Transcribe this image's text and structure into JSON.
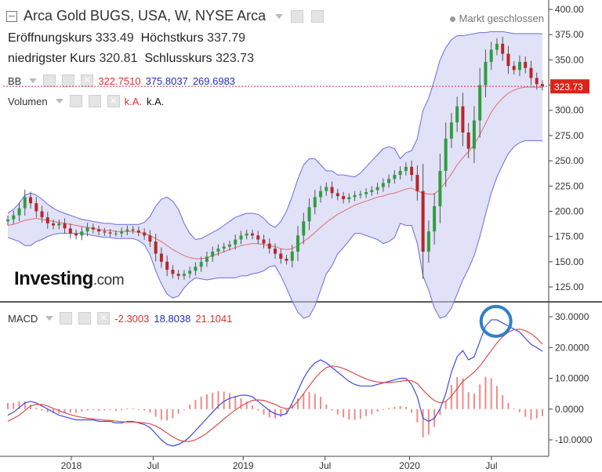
{
  "header": {
    "title": "Arca Gold BUGS, USA, W, NYSE Arca",
    "status": "Markt geschlossen"
  },
  "ohlc": {
    "open_label": "Eröffnungskurs",
    "open": "333.49",
    "high_label": "Höchstkurs",
    "high": "337.79",
    "low_label": "niedrigster Kurs",
    "low": "320.81",
    "close_label": "Schlusskurs",
    "close": "323.73"
  },
  "indicators": {
    "bb": {
      "label": "BB",
      "middle": "322.7510",
      "upper": "375.8037",
      "lower": "269.6983"
    },
    "volume": {
      "label": "Volumen",
      "v1": "k.A.",
      "v2": "k.A."
    },
    "macd": {
      "label": "MACD",
      "hist": "-2.3003",
      "macd": "18.8038",
      "signal": "21.1041"
    }
  },
  "logo": {
    "main": "Investing",
    "suffix": ".com"
  },
  "chart_data": [
    {
      "type": "candlestick",
      "title": "Arca Gold BUGS, USA, W, NYSE Arca",
      "x_ticks": [
        "2018",
        "Jul",
        "2019",
        "Jul",
        "2020",
        "Jul"
      ],
      "y_ticks": [
        "400.00",
        "375.00",
        "350.00",
        "325.00",
        "300.00",
        "275.00",
        "250.00",
        "225.00",
        "200.00",
        "175.00",
        "150.00",
        "125.00"
      ],
      "ylim": [
        110,
        405
      ],
      "last_price": "323.73",
      "closes": [
        192,
        196,
        203,
        214,
        208,
        200,
        194,
        188,
        186,
        188,
        183,
        178,
        176,
        180,
        184,
        182,
        180,
        179,
        178,
        178,
        180,
        182,
        181,
        179,
        176,
        170,
        158,
        150,
        142,
        138,
        136,
        138,
        141,
        145,
        150,
        155,
        160,
        163,
        165,
        167,
        172,
        176,
        178,
        176,
        172,
        168,
        163,
        158,
        153,
        151,
        160,
        176,
        190,
        204,
        214,
        220,
        224,
        218,
        215,
        212,
        214,
        216,
        217,
        219,
        221,
        224,
        228,
        232,
        236,
        240,
        244,
        236,
        220,
        160,
        180,
        205,
        240,
        272,
        288,
        304,
        278,
        262,
        290,
        325,
        348,
        360,
        366,
        356,
        344,
        340,
        348,
        342,
        332,
        326,
        323.73
      ],
      "bb_mid": [
        186,
        187,
        189,
        191,
        192,
        193,
        192,
        191,
        190,
        189,
        188,
        187,
        186,
        185,
        184,
        183,
        182,
        181,
        181,
        180,
        180,
        180,
        180,
        179,
        178,
        176,
        173,
        170,
        166,
        162,
        159,
        156,
        154,
        153,
        153,
        154,
        156,
        158,
        160,
        162,
        164,
        166,
        167,
        168,
        168,
        167,
        166,
        165,
        163,
        162,
        163,
        166,
        170,
        174,
        179,
        184,
        189,
        193,
        197,
        200,
        203,
        206,
        208,
        210,
        212,
        214,
        215,
        217,
        218,
        220,
        222,
        223,
        220,
        218,
        217,
        217,
        222,
        229,
        237,
        246,
        253,
        259,
        266,
        276,
        287,
        298,
        306,
        312,
        317,
        320,
        322,
        323,
        323,
        323,
        322.75
      ],
      "bb_upper": [
        198,
        202,
        208,
        216,
        218,
        216,
        212,
        207,
        203,
        200,
        198,
        196,
        194,
        192,
        191,
        190,
        189,
        188,
        188,
        187,
        187,
        187,
        187,
        187,
        189,
        195,
        205,
        212,
        214,
        210,
        202,
        188,
        178,
        172,
        173,
        176,
        179,
        182,
        186,
        190,
        194,
        196,
        198,
        198,
        197,
        193,
        187,
        184,
        190,
        200,
        215,
        232,
        246,
        252,
        252,
        246,
        240,
        240,
        236,
        236,
        235,
        234,
        238,
        244,
        250,
        256,
        262,
        264,
        262,
        252,
        258,
        260,
        272,
        300,
        312,
        330,
        350,
        362,
        370,
        374,
        374,
        375,
        376,
        377,
        377,
        378,
        378,
        378,
        377,
        376,
        376,
        376,
        376,
        376,
        375.8
      ],
      "bb_lower": [
        174,
        172,
        170,
        166,
        166,
        170,
        172,
        175,
        177,
        178,
        178,
        178,
        178,
        178,
        177,
        176,
        175,
        174,
        174,
        173,
        173,
        173,
        173,
        171,
        167,
        157,
        141,
        128,
        118,
        114,
        116,
        124,
        130,
        134,
        133,
        132,
        133,
        134,
        134,
        134,
        134,
        136,
        136,
        138,
        139,
        141,
        145,
        146,
        136,
        124,
        111,
        100,
        94,
        96,
        106,
        122,
        138,
        146,
        158,
        164,
        171,
        178,
        178,
        176,
        174,
        172,
        168,
        170,
        174,
        188,
        186,
        186,
        168,
        136,
        122,
        104,
        94,
        96,
        104,
        118,
        132,
        143,
        156,
        175,
        197,
        218,
        234,
        246,
        257,
        264,
        268,
        270,
        270,
        270,
        269.7
      ],
      "macd": [
        -2,
        -1,
        0.5,
        2,
        2.5,
        2,
        1,
        0,
        -1,
        -2,
        -2.5,
        -3,
        -3.5,
        -3.5,
        -3.5,
        -3.5,
        -4,
        -4,
        -4,
        -4.5,
        -4.5,
        -4,
        -4,
        -4.5,
        -5,
        -6,
        -8,
        -10,
        -11.5,
        -12,
        -11.5,
        -10.5,
        -9,
        -7,
        -5,
        -3,
        -1,
        1,
        2.5,
        3.5,
        4,
        4.5,
        4.5,
        4,
        2.5,
        1,
        -0.5,
        -1.5,
        -2,
        -1.5,
        2,
        6,
        10,
        13,
        15,
        16,
        15,
        13.5,
        12,
        10.5,
        9,
        8,
        7.5,
        7.5,
        7.5,
        8,
        8.5,
        9,
        9.5,
        10,
        10,
        8,
        4,
        -3,
        -4,
        -3,
        0,
        5,
        12,
        17,
        19,
        16,
        17,
        22,
        27,
        29,
        29,
        28,
        27,
        26,
        25,
        23,
        21,
        20,
        18.8
      ],
      "signal": [
        -4,
        -3,
        -2,
        -0.5,
        1,
        1.5,
        1.5,
        1,
        0.2,
        -0.5,
        -1.2,
        -1.8,
        -2.3,
        -2.7,
        -3,
        -3.2,
        -3.4,
        -3.6,
        -3.7,
        -3.9,
        -4.1,
        -4.2,
        -4.2,
        -4.3,
        -4.5,
        -4.8,
        -5.5,
        -6.5,
        -7.8,
        -9,
        -10,
        -10.5,
        -10.5,
        -10,
        -9,
        -7.8,
        -6.3,
        -4.8,
        -3.2,
        -1.7,
        -0.3,
        1,
        2,
        2.8,
        3,
        2.8,
        2.2,
        1.5,
        0.6,
        0.1,
        0.6,
        2.5,
        5,
        7.5,
        10,
        12,
        13.5,
        14,
        13.8,
        13.2,
        12.4,
        11.5,
        10.6,
        9.8,
        9.2,
        8.8,
        8.6,
        8.6,
        8.8,
        9,
        9.3,
        9.2,
        8.3,
        6.2,
        4.3,
        2.8,
        2,
        2.5,
        4.2,
        6.6,
        9,
        10.5,
        12,
        14,
        16.5,
        19,
        21.5,
        23.5,
        25,
        25.8,
        26,
        25.5,
        24.5,
        23,
        21.1
      ],
      "macd_ticks": [
        "30.0000",
        "20.0000",
        "10.0000",
        "0.0000",
        "-10.0000"
      ]
    }
  ]
}
